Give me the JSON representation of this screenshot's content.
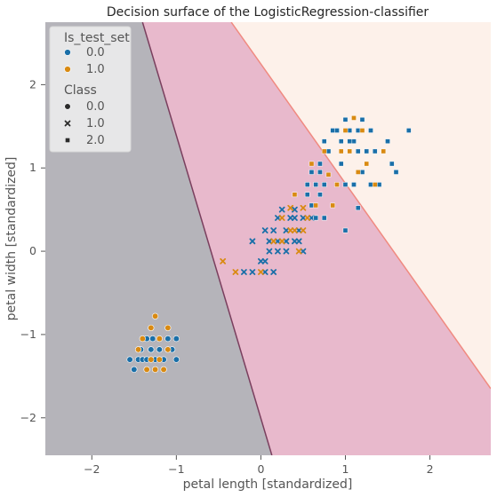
{
  "chart_data": {
    "type": "scatter",
    "title": "Decision surface of the LogisticRegression-classifier",
    "xlabel": "petal length [standardized]",
    "ylabel": "petal width [standardized]",
    "xlim": [
      -2.55,
      2.72
    ],
    "ylim": [
      -2.45,
      2.75
    ],
    "xticks": [
      -2,
      -1,
      0,
      1,
      2
    ],
    "yticks": [
      -2,
      -1,
      0,
      1,
      2
    ],
    "xtick_labels": [
      "−2",
      "−1",
      "0",
      "1",
      "2"
    ],
    "ytick_labels": [
      "−2",
      "−1",
      "0",
      "1",
      "2"
    ],
    "grid": false,
    "legend_position": "top-left",
    "colors": {
      "train": "#1a6fa8",
      "test": "#d98a12",
      "region_0": "#b5b4ba",
      "region_1": "#e8b9cc",
      "region_2": "#fdf1ea",
      "boundary_01": "#7a3f5e",
      "boundary_12": "#f08a80"
    },
    "regions": [
      {
        "class": "0.0",
        "polygon": [
          [
            -2.55,
            2.75
          ],
          [
            -1.4,
            2.75
          ],
          [
            0.13,
            -2.45
          ],
          [
            -2.55,
            -2.45
          ]
        ]
      },
      {
        "class": "1.0",
        "polygon": [
          [
            -1.4,
            2.75
          ],
          [
            -0.35,
            2.75
          ],
          [
            2.72,
            -1.65
          ],
          [
            2.72,
            -2.45
          ],
          [
            0.13,
            -2.45
          ]
        ]
      },
      {
        "class": "2.0",
        "polygon": [
          [
            -0.35,
            2.75
          ],
          [
            2.72,
            2.75
          ],
          [
            2.72,
            -1.65
          ]
        ]
      }
    ],
    "boundaries": [
      {
        "name": "0-1",
        "points": [
          [
            -1.4,
            2.75
          ],
          [
            0.13,
            -2.45
          ]
        ]
      },
      {
        "name": "1-2",
        "points": [
          [
            -0.35,
            2.75
          ],
          [
            2.72,
            -1.65
          ]
        ]
      }
    ],
    "legend": {
      "hue_title": "Is_test_set",
      "hue_entries": [
        {
          "label": "0.0",
          "key": "train"
        },
        {
          "label": "1.0",
          "key": "test"
        }
      ],
      "style_title": "Class",
      "style_entries": [
        {
          "label": "0.0",
          "marker": "circle"
        },
        {
          "label": "1.0",
          "marker": "x"
        },
        {
          "label": "2.0",
          "marker": "square"
        }
      ]
    },
    "series": [
      {
        "class": "0.0",
        "marker": "circle",
        "set": "train",
        "points": [
          [
            -1.55,
            -1.3
          ],
          [
            -1.5,
            -1.42
          ],
          [
            -1.45,
            -1.3
          ],
          [
            -1.42,
            -1.18
          ],
          [
            -1.4,
            -1.3
          ],
          [
            -1.35,
            -1.3
          ],
          [
            -1.3,
            -1.18
          ],
          [
            -1.28,
            -1.05
          ],
          [
            -1.25,
            -1.3
          ],
          [
            -1.2,
            -1.18
          ],
          [
            -1.15,
            -1.3
          ],
          [
            -1.1,
            -1.05
          ],
          [
            -1.05,
            -1.18
          ],
          [
            -1.0,
            -1.3
          ],
          [
            -1.0,
            -1.05
          ],
          [
            -1.35,
            -1.05
          ]
        ]
      },
      {
        "class": "0.0",
        "marker": "circle",
        "set": "test",
        "points": [
          [
            -1.4,
            -1.05
          ],
          [
            -1.35,
            -1.42
          ],
          [
            -1.3,
            -0.92
          ],
          [
            -1.25,
            -0.78
          ],
          [
            -1.25,
            -1.42
          ],
          [
            -1.2,
            -1.3
          ],
          [
            -1.2,
            -1.05
          ],
          [
            -1.1,
            -0.92
          ],
          [
            -1.1,
            -1.18
          ],
          [
            -1.15,
            -1.42
          ],
          [
            -1.45,
            -1.18
          ],
          [
            -1.3,
            -1.3
          ]
        ]
      },
      {
        "class": "1.0",
        "marker": "x",
        "set": "train",
        "points": [
          [
            -0.1,
            -0.25
          ],
          [
            0.05,
            -0.25
          ],
          [
            0.15,
            -0.25
          ],
          [
            0.0,
            -0.12
          ],
          [
            0.05,
            -0.12
          ],
          [
            0.1,
            0.0
          ],
          [
            0.2,
            0.0
          ],
          [
            0.3,
            0.0
          ],
          [
            0.1,
            0.12
          ],
          [
            0.2,
            0.12
          ],
          [
            0.3,
            0.12
          ],
          [
            0.4,
            0.12
          ],
          [
            0.05,
            0.25
          ],
          [
            0.3,
            0.25
          ],
          [
            0.45,
            0.25
          ],
          [
            0.2,
            0.4
          ],
          [
            0.35,
            0.4
          ],
          [
            0.5,
            0.4
          ],
          [
            0.6,
            0.4
          ],
          [
            -0.2,
            -0.25
          ],
          [
            -0.1,
            0.12
          ],
          [
            0.45,
            0.12
          ],
          [
            0.5,
            0.0
          ],
          [
            0.4,
            0.5
          ],
          [
            0.25,
            0.5
          ],
          [
            0.4,
            0.4
          ],
          [
            0.15,
            0.25
          ]
        ]
      },
      {
        "class": "1.0",
        "marker": "x",
        "set": "test",
        "points": [
          [
            -0.45,
            -0.12
          ],
          [
            -0.3,
            -0.25
          ],
          [
            0.0,
            -0.25
          ],
          [
            0.15,
            0.12
          ],
          [
            0.25,
            0.12
          ],
          [
            0.35,
            0.25
          ],
          [
            0.4,
            0.25
          ],
          [
            0.5,
            0.25
          ],
          [
            0.35,
            0.52
          ],
          [
            0.5,
            0.52
          ],
          [
            0.25,
            0.4
          ],
          [
            0.55,
            0.4
          ],
          [
            0.45,
            0.0
          ]
        ]
      },
      {
        "class": "2.0",
        "marker": "square",
        "set": "train",
        "points": [
          [
            0.55,
            0.8
          ],
          [
            0.6,
            0.95
          ],
          [
            0.65,
            0.8
          ],
          [
            0.7,
            0.68
          ],
          [
            0.75,
            0.8
          ],
          [
            0.75,
            0.4
          ],
          [
            0.6,
            0.55
          ],
          [
            0.7,
            1.05
          ],
          [
            0.8,
            1.2
          ],
          [
            0.85,
            1.45
          ],
          [
            0.9,
            1.45
          ],
          [
            0.95,
            1.32
          ],
          [
            1.0,
            1.58
          ],
          [
            1.05,
            1.45
          ],
          [
            1.1,
            1.32
          ],
          [
            1.15,
            1.45
          ],
          [
            1.2,
            1.58
          ],
          [
            1.3,
            1.45
          ],
          [
            1.35,
            1.2
          ],
          [
            1.45,
            1.2
          ],
          [
            1.5,
            1.32
          ],
          [
            1.55,
            1.05
          ],
          [
            1.6,
            0.95
          ],
          [
            1.75,
            1.45
          ],
          [
            1.0,
            0.8
          ],
          [
            1.1,
            0.8
          ],
          [
            1.2,
            0.95
          ],
          [
            1.3,
            0.8
          ],
          [
            1.0,
            0.25
          ],
          [
            1.15,
            0.52
          ],
          [
            1.25,
            1.2
          ],
          [
            0.95,
            1.05
          ],
          [
            1.05,
            1.32
          ],
          [
            0.75,
            1.32
          ],
          [
            0.7,
            0.95
          ],
          [
            1.15,
            1.2
          ],
          [
            1.4,
            0.8
          ],
          [
            0.65,
            0.4
          ],
          [
            0.55,
            0.68
          ]
        ]
      },
      {
        "class": "2.0",
        "marker": "square",
        "set": "test",
        "points": [
          [
            0.4,
            0.68
          ],
          [
            0.6,
            1.05
          ],
          [
            0.65,
            0.55
          ],
          [
            0.8,
            0.92
          ],
          [
            0.85,
            0.55
          ],
          [
            0.9,
            0.8
          ],
          [
            1.0,
            1.45
          ],
          [
            1.05,
            1.2
          ],
          [
            1.1,
            1.6
          ],
          [
            1.15,
            0.95
          ],
          [
            1.25,
            1.05
          ],
          [
            1.35,
            0.8
          ],
          [
            1.45,
            1.2
          ],
          [
            1.2,
            1.45
          ],
          [
            0.75,
            1.2
          ],
          [
            0.95,
            1.2
          ]
        ]
      }
    ]
  }
}
